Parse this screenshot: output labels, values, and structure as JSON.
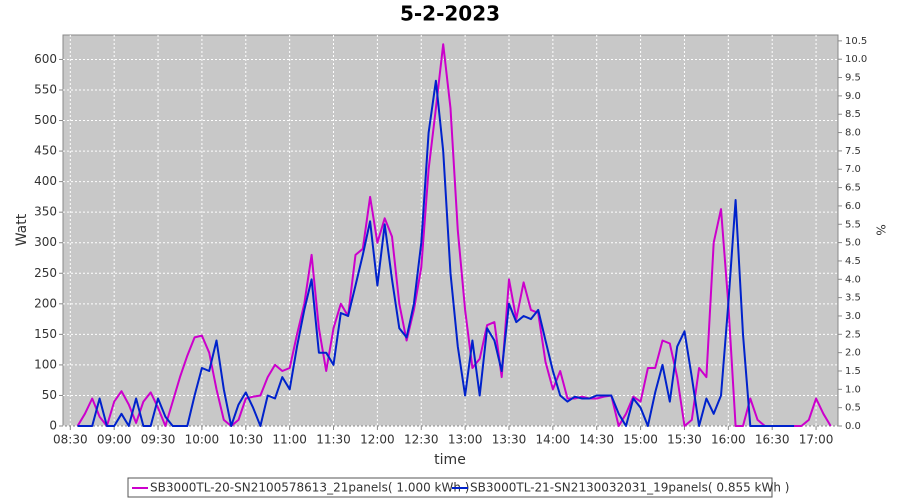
{
  "chart_data": {
    "type": "line",
    "title": "5-2-2023",
    "x_label": "time",
    "y_label": "Watt",
    "y2_label": "%",
    "x": [
      "08:35",
      "08:40",
      "08:45",
      "08:50",
      "08:55",
      "09:00",
      "09:05",
      "09:10",
      "09:15",
      "09:20",
      "09:25",
      "09:30",
      "09:35",
      "09:40",
      "09:45",
      "09:50",
      "09:55",
      "10:00",
      "10:05",
      "10:10",
      "10:15",
      "10:20",
      "10:25",
      "10:30",
      "10:35",
      "10:40",
      "10:45",
      "10:50",
      "10:55",
      "11:00",
      "11:05",
      "11:10",
      "11:15",
      "11:20",
      "11:25",
      "11:30",
      "11:35",
      "11:40",
      "11:45",
      "11:50",
      "11:55",
      "12:00",
      "12:05",
      "12:10",
      "12:15",
      "12:20",
      "12:25",
      "12:30",
      "12:35",
      "12:40",
      "12:45",
      "12:50",
      "12:55",
      "13:00",
      "13:05",
      "13:10",
      "13:15",
      "13:20",
      "13:25",
      "13:30",
      "13:35",
      "13:40",
      "13:45",
      "13:50",
      "13:55",
      "14:00",
      "14:05",
      "14:10",
      "14:15",
      "14:20",
      "14:25",
      "14:30",
      "14:35",
      "14:40",
      "14:45",
      "14:50",
      "14:55",
      "15:00",
      "15:05",
      "15:10",
      "15:15",
      "15:20",
      "15:25",
      "15:30",
      "15:35",
      "15:40",
      "15:45",
      "15:50",
      "15:55",
      "16:00",
      "16:05",
      "16:10",
      "16:15",
      "16:20",
      "16:25",
      "16:30",
      "16:35",
      "16:40",
      "16:45",
      "16:50",
      "16:55",
      "17:00",
      "17:05",
      "17:10"
    ],
    "series": [
      {
        "name": "SB3000TL-20-SN2100578613_21panels( 1.000 kWh  )",
        "color": "#cc00cc",
        "values": [
          0,
          20,
          45,
          15,
          0,
          40,
          57,
          35,
          5,
          40,
          55,
          30,
          0,
          40,
          80,
          115,
          145,
          148,
          120,
          60,
          10,
          0,
          10,
          45,
          48,
          50,
          80,
          100,
          90,
          95,
          150,
          200,
          280,
          160,
          90,
          160,
          200,
          180,
          280,
          290,
          375,
          300,
          340,
          310,
          200,
          140,
          190,
          260,
          420,
          520,
          625,
          520,
          320,
          190,
          95,
          110,
          165,
          170,
          80,
          240,
          175,
          235,
          190,
          185,
          105,
          60,
          90,
          45,
          45,
          48,
          45,
          45,
          48,
          50,
          0,
          20,
          48,
          40,
          95,
          95,
          140,
          135,
          80,
          0,
          10,
          95,
          80,
          300,
          355,
          200,
          0,
          0,
          45,
          10,
          0,
          0,
          0,
          0,
          0,
          0,
          10,
          45,
          20,
          0
        ]
      },
      {
        "name": "SB3000TL-21-SN2130032031_19panels( 0.855 kWh  )",
        "color": "#0022cc",
        "values": [
          0,
          0,
          0,
          45,
          0,
          0,
          20,
          0,
          45,
          0,
          0,
          45,
          15,
          0,
          0,
          0,
          50,
          95,
          90,
          140,
          60,
          0,
          35,
          55,
          30,
          0,
          50,
          45,
          80,
          60,
          130,
          190,
          240,
          120,
          120,
          100,
          185,
          180,
          230,
          280,
          335,
          230,
          330,
          240,
          160,
          145,
          200,
          300,
          480,
          565,
          450,
          250,
          130,
          50,
          140,
          50,
          160,
          140,
          90,
          200,
          170,
          180,
          175,
          190,
          140,
          90,
          50,
          40,
          48,
          45,
          45,
          50,
          50,
          50,
          20,
          0,
          45,
          30,
          0,
          55,
          100,
          40,
          130,
          155,
          80,
          0,
          45,
          20,
          50,
          200,
          370,
          150,
          0,
          0,
          0,
          0,
          0,
          0,
          0,
          null,
          null,
          null,
          null,
          null
        ]
      }
    ],
    "xlim": [
      "08:25",
      "17:15"
    ],
    "xticks": [
      "08:30",
      "09:00",
      "09:30",
      "10:00",
      "10:30",
      "11:00",
      "11:30",
      "12:00",
      "12:30",
      "13:00",
      "13:30",
      "14:00",
      "14:30",
      "15:00",
      "15:30",
      "16:00",
      "16:30",
      "17:00"
    ],
    "ylim": [
      0,
      640
    ],
    "yticks": [
      0,
      50,
      100,
      150,
      200,
      250,
      300,
      350,
      400,
      450,
      500,
      550,
      600
    ],
    "y2lim": [
      0,
      10.66
    ],
    "y2ticks": [
      {
        "value": 0,
        "label": "0.0"
      },
      {
        "value": 0.5,
        "label": "0.5"
      },
      {
        "value": 1,
        "label": "1.0"
      },
      {
        "value": 1.5,
        "label": "1.5"
      },
      {
        "value": 2,
        "label": "2.0"
      },
      {
        "value": 2.5,
        "label": "2.5"
      },
      {
        "value": 3,
        "label": "3.0"
      },
      {
        "value": 3.5,
        "label": "3.5"
      },
      {
        "value": 4,
        "label": "4.0"
      },
      {
        "value": 4.5,
        "label": "4.5"
      },
      {
        "value": 5,
        "label": "5.0"
      },
      {
        "value": 5.5,
        "label": "5.5"
      },
      {
        "value": 6,
        "label": "6.0"
      },
      {
        "value": 6.5,
        "label": "6.5"
      },
      {
        "value": 7,
        "label": "7.0"
      },
      {
        "value": 7.5,
        "label": "7.5"
      },
      {
        "value": 8,
        "label": "8.0"
      },
      {
        "value": 8.5,
        "label": "8.5"
      },
      {
        "value": 9,
        "label": "9.0"
      },
      {
        "value": 9.5,
        "label": "9.5"
      },
      {
        "value": 10,
        "label": "10.0"
      },
      {
        "value": 10.5,
        "label": "10.5"
      }
    ],
    "grid": true,
    "legend": "bottom"
  }
}
